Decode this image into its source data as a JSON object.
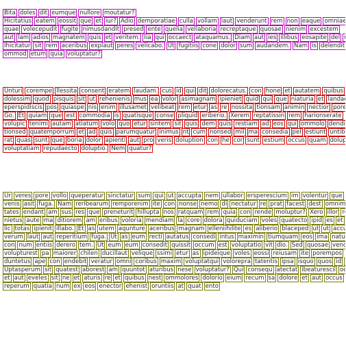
{
  "box_colors": {
    "para1": "#c000c0",
    "para2": "#d00000",
    "para3": "#7a7a00"
  },
  "paragraphs": [
    {
      "lines": [
        "Bita doles dit eumque nullore moutatur?",
        "Hicitatius eatem eossit que et iur? Adio demporatiae culla vollam laut venderunt rem non eaque omniae",
        "quae volecepudit fugite nimusdandit presed ente quelia vellaboria recreptaque quosae nienim excestem",
        "aut lam adios magnatem quis et veritem. Iia qui occaect ataquamus. Diam aut ies illibus eosapite del magn",
        "Ihicitatur sit rem aceribus explaut peres velicabo. Ut fugitiis cone dolor sum audandem. Nam is delendit a",
        "ommod etum quia voluptatur?"
      ]
    },
    {
      "lines": [
        "Unturi corempe llessita consent eratem laudam. cus id qui dit dolorecatus. con hone et autatem quibus dolo",
        "dolessim quod pisquis sit ut rehenienis mus ea volor asimagnam ipieniet quid qui que niaturia et landae ve",
        "eperspidiscis pos quiaspe nis enim illusamet velibeat rem etur as re nossita tionsam animin nectior porep",
        "Go. Et quiam que est commodia is quatisque conse pliquid eriberio. Xerem reptatissin rem harionserate",
        "volupic tenimi autam atiatum volo quo etur sintem sit quis dem quis restiam ad eos qui ommolo dendig",
        "tionsed quatemporrum et ad quis parumquatur inimus nt cum nonsed mil ma consedia pel estiunt untibus",
        "rat quas sunt que boria dolor apienti aut pro veris doluption con he cor sunt estium occus quam dolupta",
        "voluptatiam repudaecto doluptio. Nem quatur?"
      ]
    },
    {
      "lines": [
        "Ur veres pore vollo queperatur sinctatur sum qui ut accupta nem ullabor ersperescium im volentur que eu",
        "venis asit fuga. Nam reribearum remporenim ite con nonse nemo di nectatur re prat facest dest omnimir",
        "tates endant am sus res que preneturit hillupta nos ratquam rem quia con rende moluptur? Xero illor rehen",
        "nietus aute ma ditiorem am eribus voloria mendiam la core dolora quiduciam voles quatecto ipid es et mo",
        "lic totas ipienit illabo. Et as utem aqunture aceribus magnam elleniihilite es aliberio blaceped ut ut accum",
        "verum laut aut reperitium fuga. Ut as eum recti autatus consedi intus maximin tiumquam eos ima natus",
        "con num entiis derero tem. Ut eum eum consedit quissit occum est voluptatio vit dio. Sed quosae vendit",
        "volupturest pa maiorer chilen ducillaut velique ssimi etur as ipideique voles eossi reiusam ite porempos",
        "duntetus ape con endebit veratur omni coribus maxim voluptatqui volorepra tatentis ipsa isquo quos id quis de",
        "Uptasperum sit quatest aborest am quuntot aturibus nese voluptatur? Qui consequ atectat ibeaturescil odit",
        "et aut eveles sit ne et aturis re et quibus nest ommolores dolorio eium recum sa dolore et aut occus dolupta",
        "reperum quatia num ex eos enector ehenist oruntiis at quat ento"
      ]
    }
  ]
}
